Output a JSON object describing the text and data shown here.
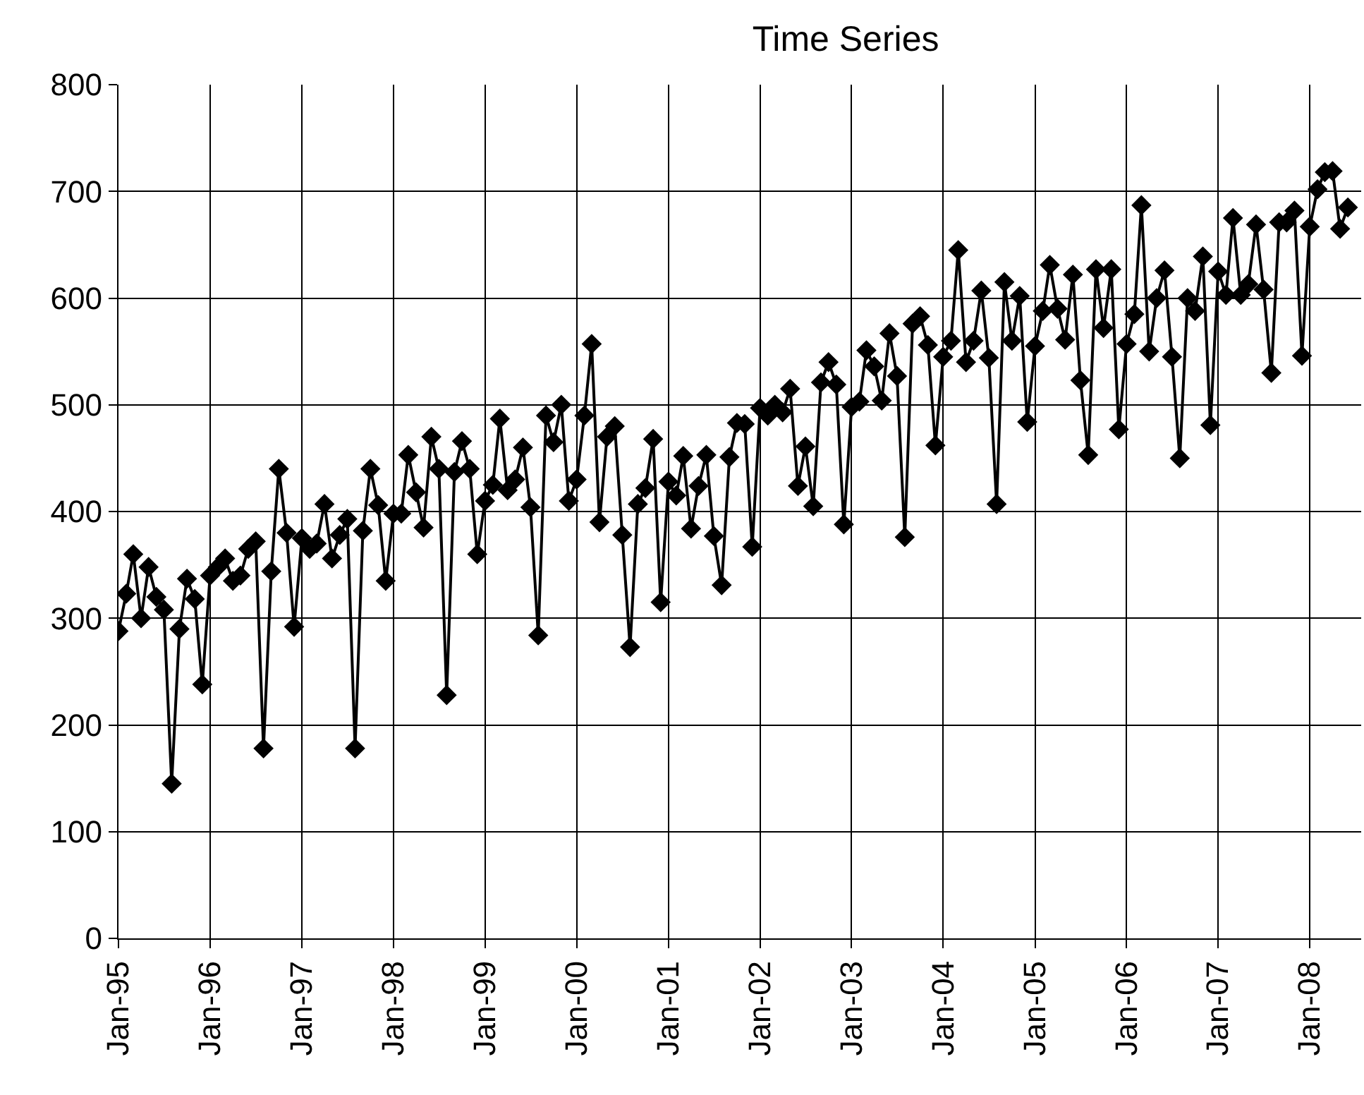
{
  "chart_data": {
    "type": "line",
    "title": "Time Series",
    "x": [
      "1995-01",
      "1995-02",
      "1995-03",
      "1995-04",
      "1995-05",
      "1995-06",
      "1995-07",
      "1995-08",
      "1995-09",
      "1995-10",
      "1995-11",
      "1995-12",
      "1996-01",
      "1996-02",
      "1996-03",
      "1996-04",
      "1996-05",
      "1996-06",
      "1996-07",
      "1996-08",
      "1996-09",
      "1996-10",
      "1996-11",
      "1996-12",
      "1997-01",
      "1997-02",
      "1997-03",
      "1997-04",
      "1997-05",
      "1997-06",
      "1997-07",
      "1997-08",
      "1997-09",
      "1997-10",
      "1997-11",
      "1997-12",
      "1998-01",
      "1998-02",
      "1998-03",
      "1998-04",
      "1998-05",
      "1998-06",
      "1998-07",
      "1998-08",
      "1998-09",
      "1998-10",
      "1998-11",
      "1998-12",
      "1999-01",
      "1999-02",
      "1999-03",
      "1999-04",
      "1999-05",
      "1999-06",
      "1999-07",
      "1999-08",
      "1999-09",
      "1999-10",
      "1999-11",
      "1999-12",
      "2000-01",
      "2000-02",
      "2000-03",
      "2000-04",
      "2000-05",
      "2000-06",
      "2000-07",
      "2000-08",
      "2000-09",
      "2000-10",
      "2000-11",
      "2000-12",
      "2001-01",
      "2001-02",
      "2001-03",
      "2001-04",
      "2001-05",
      "2001-06",
      "2001-07",
      "2001-08",
      "2001-09",
      "2001-10",
      "2001-11",
      "2001-12",
      "2002-01",
      "2002-02",
      "2002-03",
      "2002-04",
      "2002-05",
      "2002-06",
      "2002-07",
      "2002-08",
      "2002-09",
      "2002-10",
      "2002-11",
      "2002-12",
      "2003-01",
      "2003-02",
      "2003-03",
      "2003-04",
      "2003-05",
      "2003-06",
      "2003-07",
      "2003-08",
      "2003-09",
      "2003-10",
      "2003-11",
      "2003-12",
      "2004-01",
      "2004-02",
      "2004-03",
      "2004-04",
      "2004-05",
      "2004-06",
      "2004-07",
      "2004-08",
      "2004-09",
      "2004-10",
      "2004-11",
      "2004-12",
      "2005-01",
      "2005-02",
      "2005-03",
      "2005-04",
      "2005-05",
      "2005-06",
      "2005-07",
      "2005-08",
      "2005-09",
      "2005-10",
      "2005-11",
      "2005-12",
      "2006-01",
      "2006-02",
      "2006-03",
      "2006-04",
      "2006-05",
      "2006-06",
      "2006-07",
      "2006-08",
      "2006-09",
      "2006-10",
      "2006-11",
      "2006-12",
      "2007-01",
      "2007-02",
      "2007-03",
      "2007-04",
      "2007-05",
      "2007-06",
      "2007-07",
      "2007-08",
      "2007-09",
      "2007-10",
      "2007-11",
      "2007-12",
      "2008-01",
      "2008-02",
      "2008-03",
      "2008-04",
      "2008-05",
      "2008-06"
    ],
    "series": [
      {
        "color": "#000000",
        "values": [
          288,
          323,
          360,
          300,
          348,
          320,
          308,
          145,
          290,
          337,
          318,
          238,
          340,
          348,
          356,
          335,
          340,
          365,
          372,
          178,
          344,
          440,
          380,
          292,
          375,
          365,
          370,
          407,
          356,
          378,
          393,
          178,
          382,
          440,
          406,
          335,
          398,
          398,
          453,
          418,
          385,
          470,
          440,
          228,
          437,
          466,
          440,
          360,
          410,
          425,
          487,
          420,
          430,
          460,
          404,
          284,
          490,
          465,
          500,
          410,
          430,
          490,
          557,
          390,
          470,
          480,
          378,
          273,
          407,
          422,
          468,
          315,
          428,
          415,
          452,
          384,
          424,
          453,
          377,
          331,
          451,
          483,
          482,
          367,
          497,
          490,
          500,
          493,
          515,
          424,
          461,
          405,
          521,
          540,
          519,
          388,
          498,
          503,
          551,
          536,
          504,
          567,
          527,
          376,
          576,
          583,
          556,
          462,
          545,
          560,
          645,
          540,
          560,
          607,
          544,
          407,
          615,
          560,
          602,
          484,
          555,
          588,
          631,
          590,
          561,
          622,
          523,
          453,
          627,
          572,
          627,
          477,
          557,
          585,
          687,
          550,
          600,
          626,
          545,
          450,
          600,
          588,
          639,
          481,
          625,
          603,
          675,
          603,
          613,
          669,
          608,
          530,
          671,
          671,
          682,
          546,
          667,
          702,
          718,
          719,
          665,
          685
        ]
      }
    ],
    "xlim": [
      "1995-01-01",
      "2008-07-24"
    ],
    "xticks": [
      {
        "value": "1995-01",
        "label": "Jan-95"
      },
      {
        "value": "1996-01",
        "label": "Jan-96"
      },
      {
        "value": "1997-01",
        "label": "Jan-97"
      },
      {
        "value": "1998-01",
        "label": "Jan-98"
      },
      {
        "value": "1999-01",
        "label": "Jan-99"
      },
      {
        "value": "2000-01",
        "label": "Jan-00"
      },
      {
        "value": "2001-01",
        "label": "Jan-01"
      },
      {
        "value": "2002-01",
        "label": "Jan-02"
      },
      {
        "value": "2003-01",
        "label": "Jan-03"
      },
      {
        "value": "2004-01",
        "label": "Jan-04"
      },
      {
        "value": "2005-01",
        "label": "Jan-05"
      },
      {
        "value": "2006-01",
        "label": "Jan-06"
      },
      {
        "value": "2007-01",
        "label": "Jan-07"
      },
      {
        "value": "2008-01",
        "label": "Jan-08"
      }
    ],
    "ylim": [
      0,
      800
    ],
    "yticks": [
      0,
      100,
      200,
      300,
      400,
      500,
      600,
      700,
      800
    ],
    "grid": true,
    "marker": "diamond",
    "line_style": "solid"
  }
}
